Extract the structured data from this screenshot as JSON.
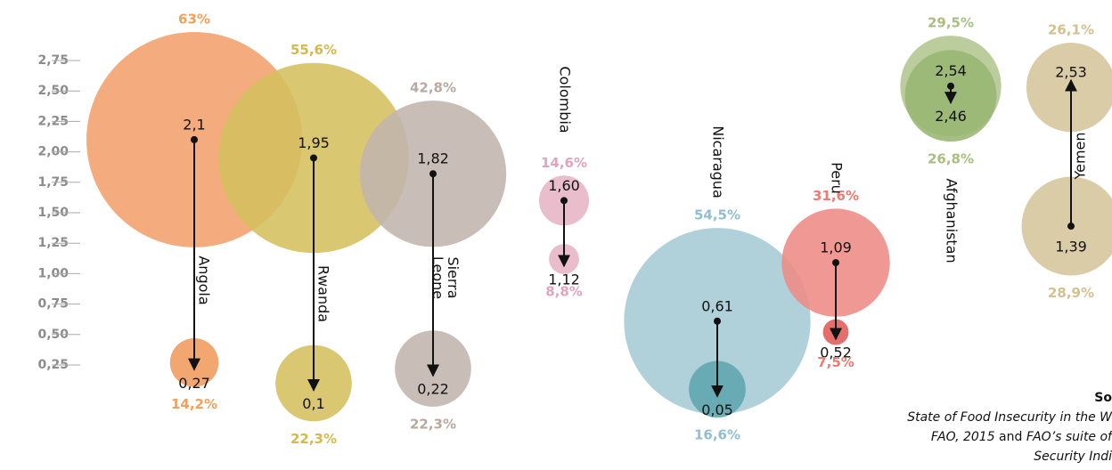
{
  "chart_data": {
    "type": "arrow_bubble",
    "ylim": [
      0,
      3
    ],
    "yticks": [
      {
        "value": 0.25,
        "label": "0,25"
      },
      {
        "value": 0.5,
        "label": "0,50"
      },
      {
        "value": 0.75,
        "label": "0,75"
      },
      {
        "value": 1,
        "label": "1,00"
      },
      {
        "value": 1.25,
        "label": "1,25"
      },
      {
        "value": 1.5,
        "label": "1,50"
      },
      {
        "value": 1.75,
        "label": "1,75"
      },
      {
        "value": 2,
        "label": "2,00"
      },
      {
        "value": 2.25,
        "label": "2,25"
      },
      {
        "value": 2.5,
        "label": "2,50"
      },
      {
        "value": 2.75,
        "label": "2,75"
      }
    ],
    "series": [
      {
        "name": "Angola",
        "colors": [
          "#f2a06c",
          "#f09a5c"
        ],
        "label_color": "#f0a060",
        "values": [
          2.1,
          0.27
        ],
        "value_labels": [
          "2,1",
          "0,27"
        ],
        "sizes": [
          63,
          14.2
        ],
        "size_labels": [
          "63%",
          "14,2%"
        ]
      },
      {
        "name": "Rwanda",
        "colors": [
          "#d4bf5e",
          "#d4bf5e"
        ],
        "label_color": "#d4b850",
        "values": [
          1.95,
          0.1
        ],
        "value_labels": [
          "1,95",
          "0,1"
        ],
        "sizes": [
          55.6,
          22.3
        ],
        "size_labels": [
          "55,6%",
          "22,3%"
        ]
      },
      {
        "name": [
          "Sierra",
          "Leone"
        ],
        "colors": [
          "#c2b5ad",
          "#c2b5ad"
        ],
        "label_color": "#b8aaa2",
        "values": [
          1.82,
          0.22
        ],
        "value_labels": [
          "1,82",
          "0,22"
        ],
        "sizes": [
          42.8,
          22.3
        ],
        "size_labels": [
          "42,8%",
          "22,3%"
        ]
      },
      {
        "name": "Colombia",
        "colors": [
          "#e6b4c4",
          "#e6b4c4"
        ],
        "label_color": "#e2a4bc",
        "values": [
          1.6,
          1.12
        ],
        "value_labels": [
          "1,60",
          "1,12"
        ],
        "sizes": [
          14.6,
          8.8
        ],
        "size_labels": [
          "14,6%",
          "8,8%"
        ]
      },
      {
        "name": "Nicaragua",
        "colors": [
          "#a5cad5",
          "#5ea5ae"
        ],
        "label_color": "#90bfd0",
        "values": [
          0.61,
          0.05
        ],
        "value_labels": [
          "0,61",
          "0,05"
        ],
        "sizes": [
          54.5,
          16.6
        ],
        "size_labels": [
          "54,5%",
          "16,6%"
        ]
      },
      {
        "name": "Peru",
        "colors": [
          "#ee8a84",
          "#e05a58"
        ],
        "label_color": "#ee7a70",
        "values": [
          1.09,
          0.52
        ],
        "value_labels": [
          "1,09",
          "0,52"
        ],
        "sizes": [
          31.6,
          7.5
        ],
        "size_labels": [
          "31,6%",
          "7,5%"
        ]
      },
      {
        "name": "Afghanistan",
        "colors": [
          "#b2c68e",
          "#98b672"
        ],
        "label_color": "#a8bf80",
        "values": [
          2.54,
          2.46
        ],
        "value_labels": [
          "2,54",
          "2,46"
        ],
        "sizes": [
          29.5,
          26.8
        ],
        "size_labels": [
          "29,5%",
          "26,8%"
        ]
      },
      {
        "name": "Yemen",
        "colors": [
          "#d6c59c",
          "#d6c59c"
        ],
        "label_color": "#d4c090",
        "values": [
          1.39,
          2.53
        ],
        "value_labels": [
          "1,39",
          "2,53"
        ],
        "sizes": [
          28.9,
          26.1
        ],
        "size_labels": [
          "28,9%",
          "26,1%"
        ]
      }
    ],
    "source": {
      "heading": "So",
      "line1": "State of Food Insecurity in the W",
      "line2_a": "FAO, 2015",
      "line2_b": " and ",
      "line2_c": "FAO’s suite of",
      "line3": "Security Indi"
    }
  }
}
